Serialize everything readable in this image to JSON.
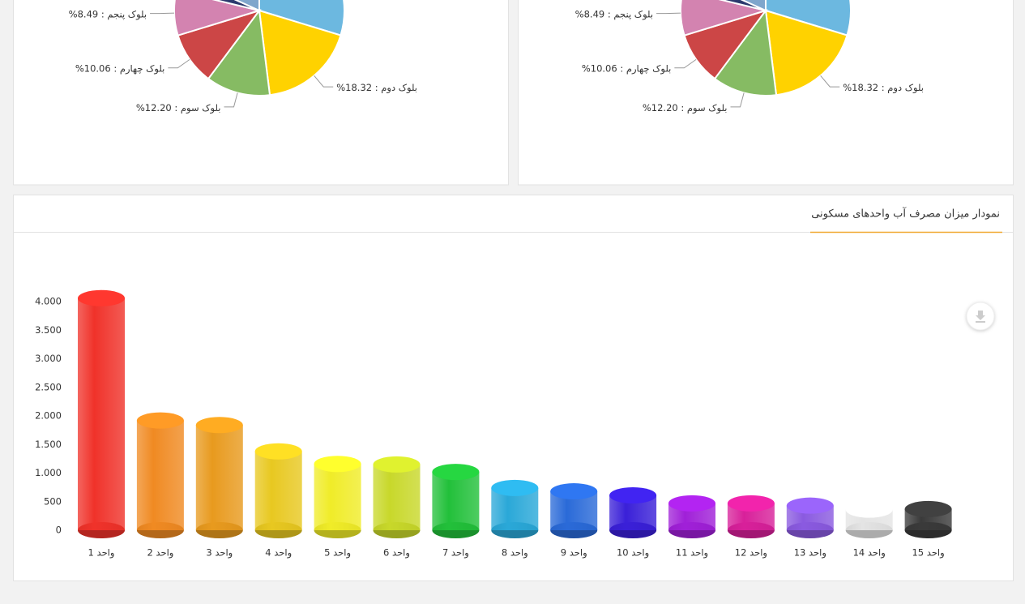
{
  "chart_data": [
    {
      "type": "pie",
      "categories": [
        null,
        "بلوک دوم",
        "بلوک سوم",
        "بلوک چهارم",
        "بلوک پنجم",
        null,
        null
      ],
      "values": [
        29.7,
        18.32,
        12.2,
        10.06,
        8.49,
        3,
        18.23
      ],
      "value_labels": [
        null,
        "18.32%",
        "12.20%",
        "10.06%",
        "8.49%",
        null,
        null
      ],
      "label_separator": ":",
      "colors": [
        "#6cb8e0",
        "#ffd200",
        "#86bb63",
        "#cc4646",
        "#d383b0",
        "#2c3a6e",
        "#7fa6cc"
      ]
    },
    {
      "type": "pie",
      "categories": [
        null,
        "بلوک دوم",
        "بلوک سوم",
        "بلوک چهارم",
        "بلوک پنجم",
        null,
        null
      ],
      "values": [
        29.7,
        18.32,
        12.2,
        10.06,
        8.49,
        3,
        18.23
      ],
      "value_labels": [
        null,
        "18.32%",
        "12.20%",
        "10.06%",
        "8.49%",
        null,
        null
      ],
      "label_separator": ":",
      "colors": [
        "#6cb8e0",
        "#ffd200",
        "#86bb63",
        "#cc4646",
        "#d383b0",
        "#2c3a6e",
        "#7fa6cc"
      ]
    },
    {
      "type": "bar",
      "title": "نمودار میزان مصرف آب واحدهای مسکونی",
      "categories": [
        "واحد 1",
        "واحد 2",
        "واحد 3",
        "واحد 4",
        "واحد 5",
        "واحد 6",
        "واحد 7",
        "واحد 8",
        "واحد 9",
        "واحد 10",
        "واحد 11",
        "واحد 12",
        "واحد 13",
        "واحد 14",
        "واحد 15"
      ],
      "values": [
        4060,
        1920,
        1840,
        1380,
        1160,
        1150,
        1020,
        740,
        680,
        610,
        470,
        470,
        430,
        360,
        370
      ],
      "colors": [
        "#f0322a",
        "#f08a22",
        "#e89a1e",
        "#e8c820",
        "#f0ec28",
        "#c8d82a",
        "#22c03a",
        "#2aa8d8",
        "#2a6ad8",
        "#3a20d8",
        "#a020d8",
        "#d8209a",
        "#8a5ae0",
        "#e4e4e4",
        "#3a3a3a"
      ],
      "ylim": [
        0,
        4000
      ],
      "yticks": [
        0,
        500,
        {
          "value": 1000,
          "label": "1.000"
        },
        {
          "value": 1500,
          "label": "1.500"
        },
        {
          "value": 2000,
          "label": "2.000"
        },
        {
          "value": 2500,
          "label": "2.500"
        },
        {
          "value": 3000,
          "label": "3.000"
        },
        {
          "value": 3500,
          "label": "3.500"
        },
        {
          "value": 4000,
          "label": "4.000"
        }
      ]
    }
  ]
}
